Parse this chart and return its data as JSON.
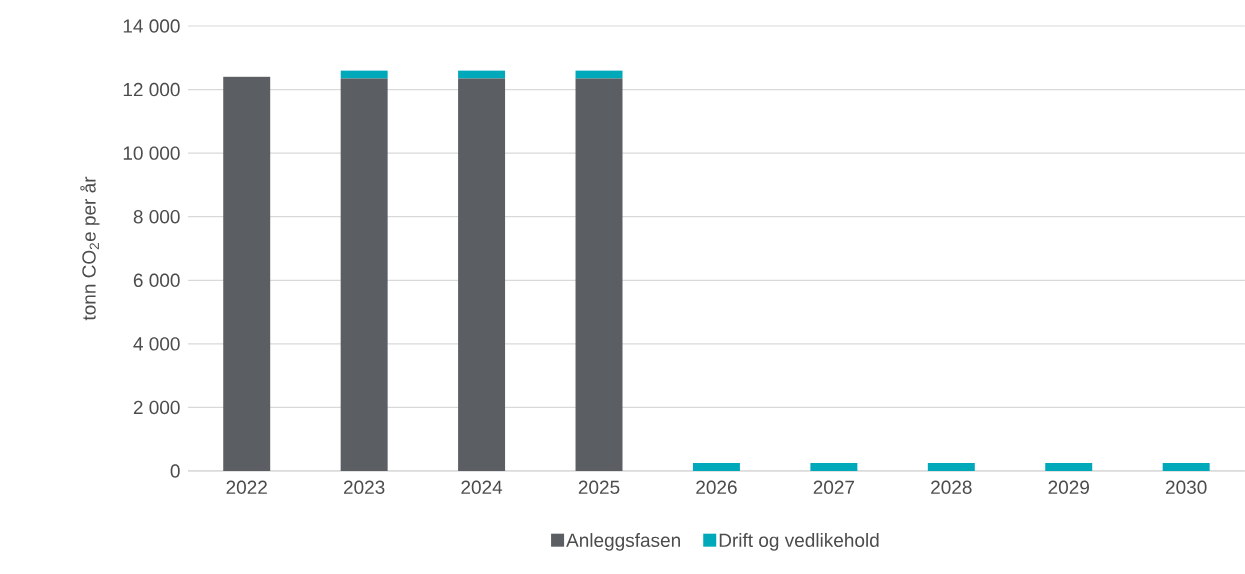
{
  "chart_data": {
    "type": "bar",
    "stacked": true,
    "ylabel": "tonn CO$_{2}$e per år",
    "categories": [
      "2022",
      "2023",
      "2024",
      "2025",
      "2026",
      "2027",
      "2028",
      "2029",
      "2030"
    ],
    "series": [
      {
        "name": "Anleggsfasen",
        "color": "#5b5e62",
        "values": [
          12400,
          12350,
          12350,
          12350,
          0,
          0,
          0,
          0,
          0
        ]
      },
      {
        "name": "Drift og vedlikehold",
        "color": "#00a9b9",
        "values": [
          0,
          250,
          250,
          250,
          250,
          250,
          250,
          250,
          250
        ]
      }
    ],
    "ylim": [
      0,
      14000
    ],
    "yticks": [
      0,
      {
        "value": 2000,
        "label": "2 000"
      },
      {
        "value": 4000,
        "label": "4 000"
      },
      {
        "value": 6000,
        "label": "6 000"
      },
      {
        "value": 8000,
        "label": "8 000"
      },
      {
        "value": 10000,
        "label": "10 000"
      },
      {
        "value": 12000,
        "label": "12 000"
      },
      {
        "value": 14000,
        "label": "14 000"
      }
    ],
    "grid": "y",
    "legend": "bottom"
  }
}
